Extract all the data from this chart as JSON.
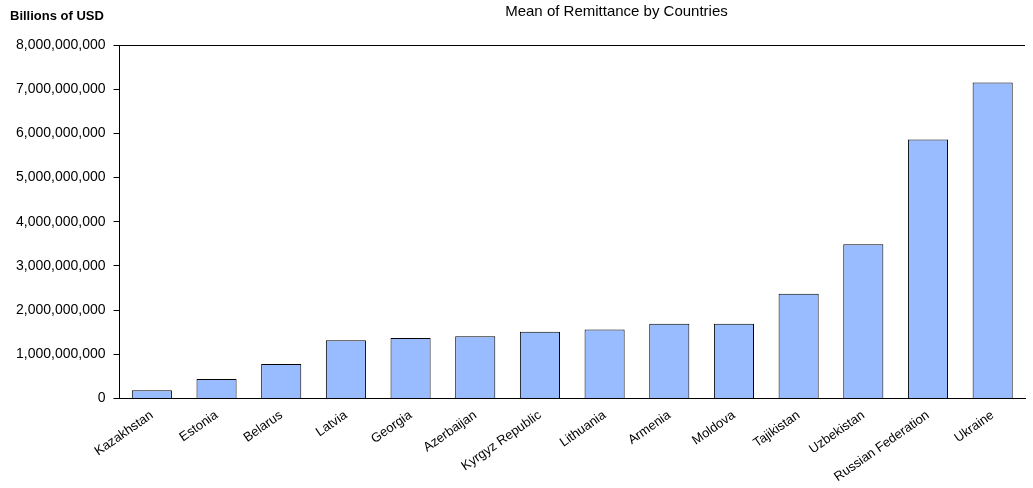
{
  "chart_data": {
    "type": "bar",
    "title": "Mean of Remittance  by Countries",
    "ylabel": "Billions of USD",
    "categories": [
      "Kazakhstan",
      "Estonia",
      "Belarus",
      "Latvia",
      "Georgia",
      "Azerbaijan",
      "Kyrgyz Republic",
      "Lithuania",
      "Armenia",
      "Moldova",
      "Tajikistan",
      "Uzbekistan",
      "Russian Federation",
      "Ukraine"
    ],
    "values": [
      190000000,
      440000000,
      780000000,
      1320000000,
      1370000000,
      1410000000,
      1510000000,
      1560000000,
      1690000000,
      1690000000,
      2370000000,
      3490000000,
      5860000000,
      7150000000
    ],
    "color": "#99bbff",
    "ylim": [
      0,
      8000000000
    ],
    "yticks": [
      {
        "value": 0,
        "label": "0"
      },
      {
        "value": 1000000000,
        "label": "1,000,000,000"
      },
      {
        "value": 2000000000,
        "label": "2,000,000,000"
      },
      {
        "value": 3000000000,
        "label": "3,000,000,000"
      },
      {
        "value": 4000000000,
        "label": "4,000,000,000"
      },
      {
        "value": 5000000000,
        "label": "5,000,000,000"
      },
      {
        "value": 6000000000,
        "label": "6,000,000,000"
      },
      {
        "value": 7000000000,
        "label": "7,000,000,000"
      },
      {
        "value": 8000000000,
        "label": "8,000,000,000"
      }
    ],
    "grid": false
  }
}
